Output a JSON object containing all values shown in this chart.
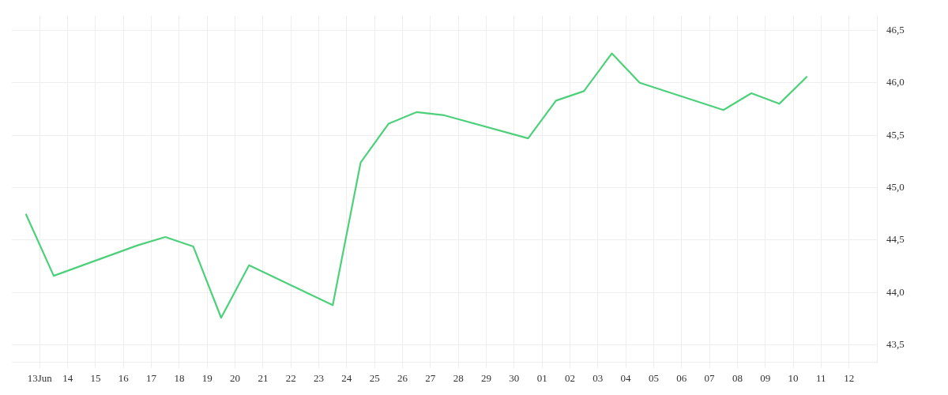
{
  "chart_data": {
    "type": "line",
    "x": [
      "--06-12T12:00",
      "--06-13T12:00",
      "--06-16T12:00",
      "--06-17T12:00",
      "--06-18T12:00",
      "--06-19T12:00",
      "--06-20T12:00",
      "--06-23T12:00",
      "--06-24T12:00",
      "--06-25T12:00",
      "--06-26T12:00",
      "--06-27T12:00",
      "--06-30T12:00",
      "--07-01T12:00",
      "--07-02T12:00",
      "--07-03T12:00",
      "--07-04T12:00",
      "--07-07T12:00",
      "--07-08T12:00",
      "--07-09T12:00",
      "--07-10T12:00"
    ],
    "series": [
      {
        "color": "#4cd17a",
        "values": [
          44.75,
          44.16,
          44.45,
          44.53,
          44.44,
          43.76,
          44.26,
          43.88,
          45.24,
          45.61,
          45.72,
          45.69,
          45.47,
          45.83,
          45.92,
          46.28,
          46.0,
          45.74,
          45.9,
          45.8,
          46.06
        ]
      }
    ],
    "xlim": [
      "--06-12",
      "--07-13"
    ],
    "xticks": [
      {
        "value": "--06-13",
        "label": "13Jun"
      },
      {
        "value": "--06-14",
        "label": "14"
      },
      {
        "value": "--06-15",
        "label": "15"
      },
      {
        "value": "--06-16",
        "label": "16"
      },
      {
        "value": "--06-17",
        "label": "17"
      },
      {
        "value": "--06-18",
        "label": "18"
      },
      {
        "value": "--06-19",
        "label": "19"
      },
      {
        "value": "--06-20",
        "label": "20"
      },
      {
        "value": "--06-21",
        "label": "21"
      },
      {
        "value": "--06-22",
        "label": "22"
      },
      {
        "value": "--06-23",
        "label": "23"
      },
      {
        "value": "--06-24",
        "label": "24"
      },
      {
        "value": "--06-25",
        "label": "25"
      },
      {
        "value": "--06-26",
        "label": "26"
      },
      {
        "value": "--06-27",
        "label": "27"
      },
      {
        "value": "--06-28",
        "label": "28"
      },
      {
        "value": "--06-29",
        "label": "29"
      },
      {
        "value": "--06-30",
        "label": "30"
      },
      {
        "value": "--07-01",
        "label": "01"
      },
      {
        "value": "--07-02",
        "label": "02"
      },
      {
        "value": "--07-03",
        "label": "03"
      },
      {
        "value": "--07-04",
        "label": "04"
      },
      {
        "value": "--07-05",
        "label": "05"
      },
      {
        "value": "--07-06",
        "label": "06"
      },
      {
        "value": "--07-07",
        "label": "07"
      },
      {
        "value": "--07-08",
        "label": "08"
      },
      {
        "value": "--07-09",
        "label": "09"
      },
      {
        "value": "--07-10",
        "label": "10"
      },
      {
        "value": "--07-11",
        "label": "11"
      },
      {
        "value": "--07-12",
        "label": "12"
      }
    ],
    "ylim": [
      43.34,
      46.64
    ],
    "yticks": [
      {
        "value": 43.5,
        "label": "43,5"
      },
      {
        "value": 44.0,
        "label": "44,0"
      },
      {
        "value": 44.5,
        "label": "44,5"
      },
      {
        "value": 45.0,
        "label": "45,0"
      },
      {
        "value": 45.5,
        "label": "45,5"
      },
      {
        "value": 46.0,
        "label": "46,0"
      },
      {
        "value": 46.5,
        "label": "46,5"
      }
    ],
    "grid": true,
    "legend": false,
    "marker": "none",
    "line_style": "solid"
  }
}
